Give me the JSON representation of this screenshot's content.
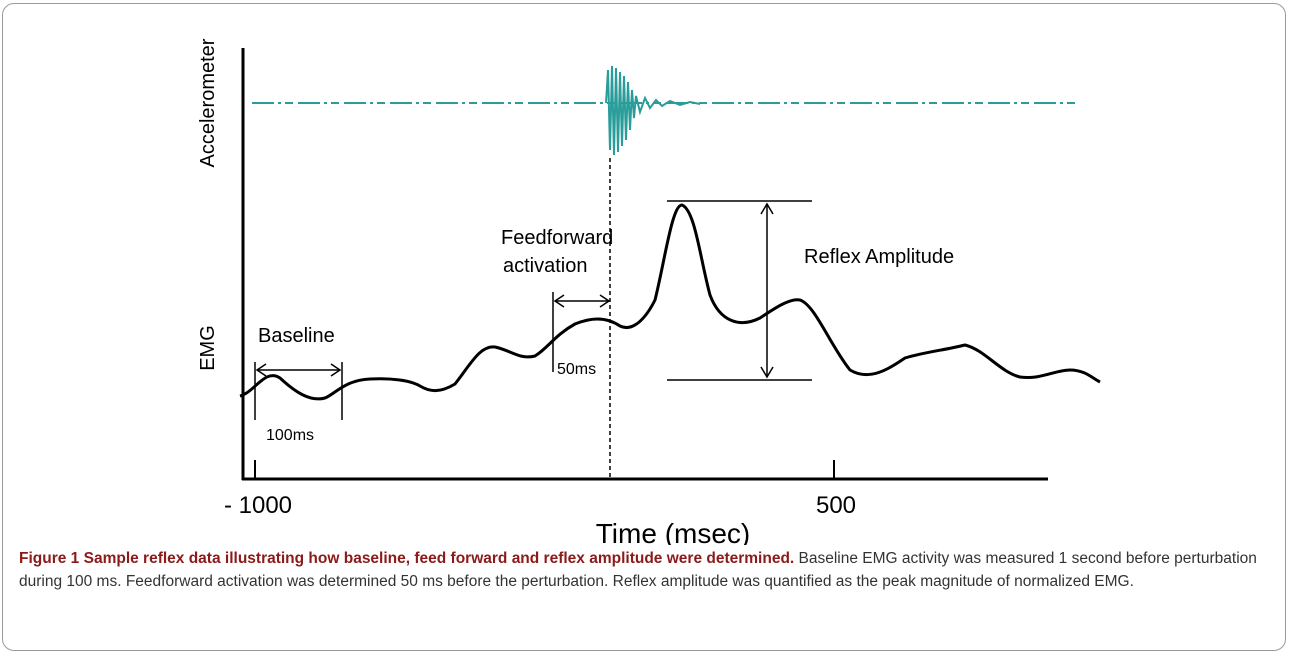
{
  "figure": {
    "ylabel_top": "Accelerometer",
    "ylabel_bottom": "EMG",
    "xlabel": "Time (msec)",
    "tick_labels": [
      "- 1000",
      "500"
    ],
    "annotations": {
      "baseline": "Baseline",
      "baseline_window": "100ms",
      "feedforward_line1": "Feedforward",
      "feedforward_line2": "activation",
      "feedforward_window": "50ms",
      "reflex": "Reflex Amplitude"
    }
  },
  "caption": {
    "label": "Figure 1",
    "title": "Sample reflex data illustrating how baseline, feed forward and reflex amplitude were determined.",
    "body": "Baseline EMG activity was measured 1 second before perturbation during 100 ms. Feedforward activation was determined 50 ms before the perturbation. Reflex amplitude was quantified as the peak magnitude of normalized EMG."
  },
  "colors": {
    "accelerometer": "#2a9d9a",
    "emg": "#000000",
    "caption_title": "#8b1a1a"
  }
}
